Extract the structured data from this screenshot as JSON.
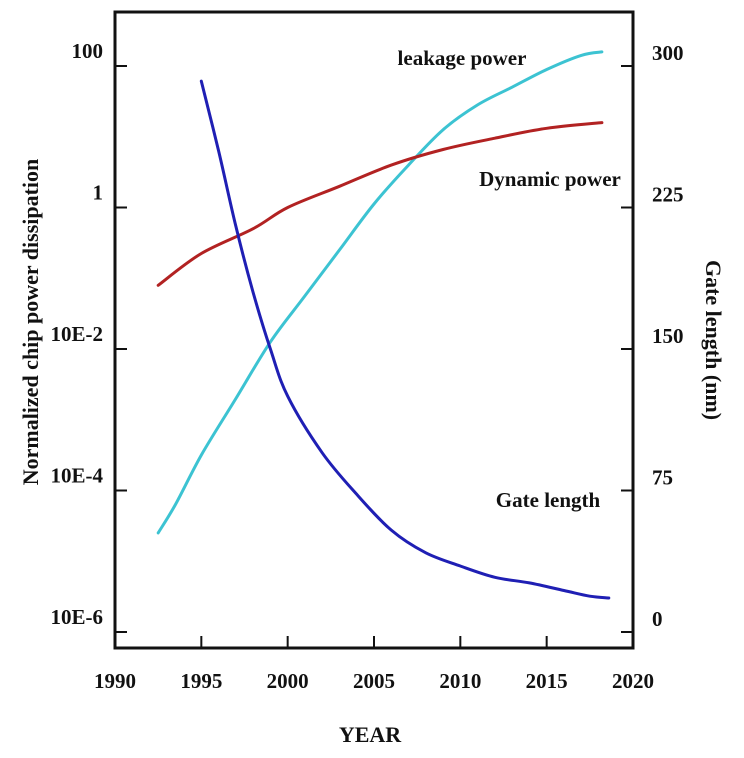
{
  "chart_data": {
    "type": "line",
    "title": "",
    "xlabel": "YEAR",
    "ylabel": "Normalized chip power dissipation",
    "y2label": "Gate length (nm)",
    "xlim": [
      1990,
      2020
    ],
    "ylim_log10": [
      -6,
      2
    ],
    "y2lim": [
      0,
      300
    ],
    "x_ticks": [
      "1990",
      "1995",
      "2000",
      "2005",
      "2010",
      "2015",
      "2020"
    ],
    "y_ticks": [
      {
        "label": "100",
        "log10": 2
      },
      {
        "label": "1",
        "log10": 0
      },
      {
        "label": "10E-2",
        "log10": -2
      },
      {
        "label": "10E-4",
        "log10": -4
      },
      {
        "label": "10E-6",
        "log10": -6
      }
    ],
    "y2_ticks": [
      "300",
      "225",
      "150",
      "75",
      "0"
    ],
    "y2_tick_values": [
      300,
      225,
      150,
      75,
      0
    ],
    "grid": false,
    "legend": "none",
    "series": [
      {
        "name": "leakage power",
        "axis": "left-log",
        "color": "#3cc3d2",
        "points": [
          [
            1992.5,
            -4.6
          ],
          [
            1993.5,
            -4.2
          ],
          [
            1995,
            -3.5
          ],
          [
            1997,
            -2.7
          ],
          [
            1999,
            -1.9
          ],
          [
            2001,
            -1.25
          ],
          [
            2003,
            -0.6
          ],
          [
            2005,
            0.05
          ],
          [
            2007,
            0.6
          ],
          [
            2009,
            1.1
          ],
          [
            2011,
            1.45
          ],
          [
            2013,
            1.7
          ],
          [
            2015,
            1.95
          ],
          [
            2017,
            2.15
          ],
          [
            2018.2,
            2.2
          ]
        ]
      },
      {
        "name": "Dynamic power",
        "axis": "left-log",
        "color": "#b22222",
        "points": [
          [
            1992.5,
            -1.1
          ],
          [
            1995,
            -0.65
          ],
          [
            1998,
            -0.3
          ],
          [
            2000,
            0.0
          ],
          [
            2003,
            0.3
          ],
          [
            2006,
            0.6
          ],
          [
            2009,
            0.82
          ],
          [
            2012,
            0.98
          ],
          [
            2015,
            1.12
          ],
          [
            2018.2,
            1.2
          ]
        ]
      },
      {
        "name": "Gate length",
        "axis": "right",
        "color": "#1f1fb4",
        "points": [
          [
            1995,
            292
          ],
          [
            1996,
            255
          ],
          [
            1997,
            215
          ],
          [
            1998,
            180
          ],
          [
            1999,
            150
          ],
          [
            2000,
            125
          ],
          [
            2002,
            95
          ],
          [
            2004,
            73
          ],
          [
            2006,
            54
          ],
          [
            2008,
            42
          ],
          [
            2010,
            35
          ],
          [
            2012,
            29
          ],
          [
            2014,
            26
          ],
          [
            2016,
            22
          ],
          [
            2017.5,
            19
          ],
          [
            2018.6,
            18
          ]
        ]
      }
    ],
    "annotations": [
      {
        "text": "leakage power",
        "series": "leakage power"
      },
      {
        "text": "Dynamic power",
        "series": "Dynamic power"
      },
      {
        "text": "Gate length",
        "series": "Gate length"
      }
    ]
  }
}
